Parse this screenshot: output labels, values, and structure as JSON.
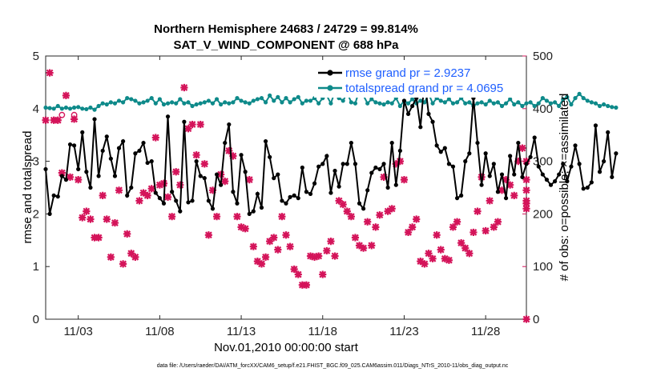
{
  "chart_data": {
    "type": "line",
    "title_line1": "Northern Hemisphere 24683 / 24729 = 99.814%",
    "title_line2": "SAT_V_WIND_COMPONENT @ 688 hPa",
    "xlabel": "Nov.01,2010 00:00:00 start",
    "ylabel_left": "rmse and totalspread",
    "ylabel_right": "# of obs: o=possible; ×=assimilated",
    "footer": "data file: /Users/raeder/DAI/ATM_forcXX/CAM6_setup/f.e21.FHIST_BGC.f09_025.CAM6assim.011/Diags_NTrS_2010-11/obs_diag_output.nc",
    "x_tick_labels": [
      "11/03",
      "11/08",
      "11/13",
      "11/18",
      "11/23",
      "11/28"
    ],
    "x_tick_days": [
      3,
      8,
      13,
      18,
      23,
      28
    ],
    "xlim_days": [
      1,
      30.5
    ],
    "ylim_left": [
      0,
      5
    ],
    "ylim_right": [
      0,
      500
    ],
    "y_ticks_left": [
      "0",
      "1",
      "2",
      "3",
      "4",
      "5"
    ],
    "y_ticks_right": [
      "0",
      "100",
      "200",
      "300",
      "400",
      "500"
    ],
    "colors": {
      "rmse": "#000000",
      "spread": "#0e8a8a",
      "obs": "#d4145a",
      "legend_text": "#1f5fff"
    },
    "legend": [
      {
        "name": "rmse grand pr = 2.9237"
      },
      {
        "name": "totalspread grand pr = 4.0695"
      }
    ],
    "series": [
      {
        "name": "rmse",
        "axis": "left",
        "x_start_day": 1.0,
        "x_step_day": 0.25,
        "values": [
          2.85,
          2.0,
          2.35,
          2.33,
          2.72,
          2.65,
          3.32,
          3.3,
          2.85,
          3.55,
          2.8,
          2.5,
          3.8,
          2.72,
          3.2,
          3.47,
          3.05,
          2.72,
          3.25,
          3.38,
          2.35,
          2.5,
          3.15,
          3.2,
          3.35,
          2.97,
          3.0,
          2.4,
          2.3,
          2.2,
          3.85,
          2.42,
          2.25,
          2.05,
          3.75,
          2.22,
          2.25,
          3.0,
          2.72,
          2.68,
          2.25,
          2.1,
          2.75,
          2.55,
          3.35,
          3.7,
          2.42,
          2.2,
          3.12,
          2.8,
          2.0,
          2.05,
          2.38,
          2.12,
          3.38,
          3.08,
          2.68,
          2.75,
          2.25,
          2.2,
          2.32,
          2.35,
          2.3,
          2.88,
          2.42,
          2.38,
          2.58,
          2.9,
          2.95,
          3.1,
          2.4,
          2.82,
          2.52,
          2.95,
          2.95,
          3.35,
          2.95,
          2.2,
          2.1,
          2.45,
          2.78,
          2.88,
          2.85,
          2.95,
          2.5,
          3.35,
          2.55,
          3.2,
          4.15,
          3.9,
          4.05,
          4.2,
          3.65,
          4.55,
          3.9,
          3.75,
          3.3,
          3.18,
          3.25,
          2.95,
          2.9,
          2.3,
          2.35,
          3.0,
          3.15,
          4.2,
          3.35,
          2.55,
          3.15,
          2.72,
          2.95,
          2.42,
          2.75,
          2.3,
          3.1,
          2.75,
          3.35,
          2.7,
          2.95,
          3.08,
          3.45,
          2.9,
          2.75,
          2.65,
          2.55,
          2.62,
          2.75,
          2.95,
          2.62,
          2.9,
          3.3,
          2.95,
          2.48,
          2.5,
          2.6,
          3.68,
          2.8,
          3.0,
          3.55,
          2.7,
          3.15
        ]
      },
      {
        "name": "totalspread",
        "axis": "left",
        "x_start_day": 1.0,
        "x_step_day": 0.25,
        "values": [
          4.02,
          4.01,
          4.0,
          4.05,
          4.0,
          4.02,
          4.0,
          4.02,
          4.03,
          4.0,
          3.99,
          4.02,
          3.98,
          4.05,
          4.1,
          4.08,
          4.12,
          4.1,
          4.15,
          4.12,
          4.2,
          4.18,
          4.15,
          4.1,
          4.12,
          4.15,
          4.2,
          4.1,
          4.18,
          4.08,
          4.1,
          4.12,
          4.1,
          4.18,
          4.1,
          4.12,
          4.05,
          4.08,
          4.1,
          4.12,
          4.15,
          4.1,
          4.18,
          4.08,
          4.12,
          4.1,
          4.12,
          4.2,
          4.15,
          4.12,
          4.1,
          4.15,
          4.18,
          4.2,
          4.12,
          4.25,
          4.15,
          4.22,
          4.12,
          4.2,
          4.12,
          4.18,
          4.22,
          4.1,
          4.15,
          4.15,
          4.2,
          4.1,
          4.2,
          4.25,
          4.1,
          4.32,
          4.2,
          4.15,
          4.3,
          4.12,
          4.1,
          4.35,
          4.25,
          4.1,
          4.18,
          4.12,
          4.1,
          4.08,
          4.12,
          4.1,
          4.2,
          4.05,
          4.15,
          4.1,
          4.18,
          4.1,
          4.15,
          4.12,
          4.28,
          4.1,
          4.2,
          4.15,
          4.12,
          4.18,
          4.1,
          4.12,
          4.2,
          4.1,
          4.12,
          4.05,
          4.1,
          4.12,
          4.08,
          4.15,
          4.1,
          4.12,
          4.05,
          4.1,
          4.18,
          4.08,
          4.12,
          4.05,
          4.1,
          4.12,
          4.05,
          4.1,
          4.2,
          4.15,
          4.1,
          4.12,
          4.05,
          4.18,
          4.22,
          4.08,
          4.2,
          4.28,
          4.2,
          4.15,
          4.12,
          4.1,
          4.05,
          4.08,
          4.05,
          4.03,
          4.02
        ]
      },
      {
        "name": "obs_possible",
        "axis": "right",
        "marker": "o",
        "points": [
          [
            2.0,
            388
          ],
          [
            2.75,
            388
          ]
        ]
      },
      {
        "name": "obs_assimilated",
        "axis": "right",
        "marker": "x",
        "points": [
          [
            1.0,
            378
          ],
          [
            1.25,
            468
          ],
          [
            1.5,
            378
          ],
          [
            1.75,
            378
          ],
          [
            2.0,
            278
          ],
          [
            2.25,
            425
          ],
          [
            2.5,
            270
          ],
          [
            2.75,
            380
          ],
          [
            3.0,
            265
          ],
          [
            3.25,
            193
          ],
          [
            3.5,
            205
          ],
          [
            3.75,
            190
          ],
          [
            4.0,
            155
          ],
          [
            4.25,
            155
          ],
          [
            4.5,
            235
          ],
          [
            4.75,
            190
          ],
          [
            5.0,
            118
          ],
          [
            5.25,
            183
          ],
          [
            5.5,
            245
          ],
          [
            5.75,
            105
          ],
          [
            6.0,
            162
          ],
          [
            6.25,
            125
          ],
          [
            6.5,
            118
          ],
          [
            6.75,
            225
          ],
          [
            7.0,
            240
          ],
          [
            7.25,
            235
          ],
          [
            7.5,
            248
          ],
          [
            7.75,
            345
          ],
          [
            8.0,
            255
          ],
          [
            8.25,
            258
          ],
          [
            8.5,
            232
          ],
          [
            8.75,
            195
          ],
          [
            9.0,
            280
          ],
          [
            9.25,
            255
          ],
          [
            9.5,
            440
          ],
          [
            9.75,
            362
          ],
          [
            10.0,
            370
          ],
          [
            10.25,
            312
          ],
          [
            10.5,
            370
          ],
          [
            10.75,
            295
          ],
          [
            11.0,
            160
          ],
          [
            11.25,
            245
          ],
          [
            11.5,
            195
          ],
          [
            11.75,
            275
          ],
          [
            12.0,
            262
          ],
          [
            12.25,
            320
          ],
          [
            12.5,
            310
          ],
          [
            12.75,
            195
          ],
          [
            13.0,
            175
          ],
          [
            13.25,
            172
          ],
          [
            13.5,
            265
          ],
          [
            13.75,
            138
          ],
          [
            14.0,
            110
          ],
          [
            14.25,
            105
          ],
          [
            14.5,
            118
          ],
          [
            14.75,
            148
          ],
          [
            15.0,
            155
          ],
          [
            15.25,
            132
          ],
          [
            15.5,
            195
          ],
          [
            15.75,
            160
          ],
          [
            16.0,
            138
          ],
          [
            16.25,
            95
          ],
          [
            16.5,
            85
          ],
          [
            16.75,
            65
          ],
          [
            17.0,
            65
          ],
          [
            17.25,
            120
          ],
          [
            17.5,
            118
          ],
          [
            17.75,
            120
          ],
          [
            18.0,
            85
          ],
          [
            18.25,
            130
          ],
          [
            18.5,
            148
          ],
          [
            18.75,
            120
          ],
          [
            19.0,
            225
          ],
          [
            19.25,
            218
          ],
          [
            19.5,
            205
          ],
          [
            19.75,
            195
          ],
          [
            20.0,
            155
          ],
          [
            20.25,
            140
          ],
          [
            20.5,
            135
          ],
          [
            20.75,
            185
          ],
          [
            21.0,
            140
          ],
          [
            21.25,
            175
          ],
          [
            21.5,
            198
          ],
          [
            21.75,
            270
          ],
          [
            22.0,
            205
          ],
          [
            22.25,
            210
          ],
          [
            22.5,
            295
          ],
          [
            22.75,
            300
          ],
          [
            23.0,
            265
          ],
          [
            23.25,
            165
          ],
          [
            23.5,
            175
          ],
          [
            23.75,
            190
          ],
          [
            24.0,
            110
          ],
          [
            24.25,
            105
          ],
          [
            24.5,
            125
          ],
          [
            24.75,
            115
          ],
          [
            25.0,
            160
          ],
          [
            25.25,
            132
          ],
          [
            25.5,
            115
          ],
          [
            25.75,
            112
          ],
          [
            26.0,
            175
          ],
          [
            26.25,
            185
          ],
          [
            26.5,
            145
          ],
          [
            26.75,
            135
          ],
          [
            27.0,
            125
          ],
          [
            27.25,
            165
          ],
          [
            27.5,
            205
          ],
          [
            27.75,
            270
          ],
          [
            28.0,
            168
          ],
          [
            28.25,
            225
          ],
          [
            28.5,
            175
          ],
          [
            28.75,
            185
          ],
          [
            29.0,
            245
          ],
          [
            29.25,
            265
          ],
          [
            29.5,
            255
          ],
          [
            29.75,
            235
          ],
          [
            30.0,
            300
          ],
          [
            30.25,
            325
          ],
          [
            30.5,
            265
          ],
          [
            30.75,
            225
          ],
          [
            31.0,
            210
          ],
          [
            31.25,
            220
          ],
          [
            31.5,
            245
          ],
          [
            31.75,
            300
          ],
          [
            32.0,
            0
          ]
        ]
      }
    ]
  }
}
